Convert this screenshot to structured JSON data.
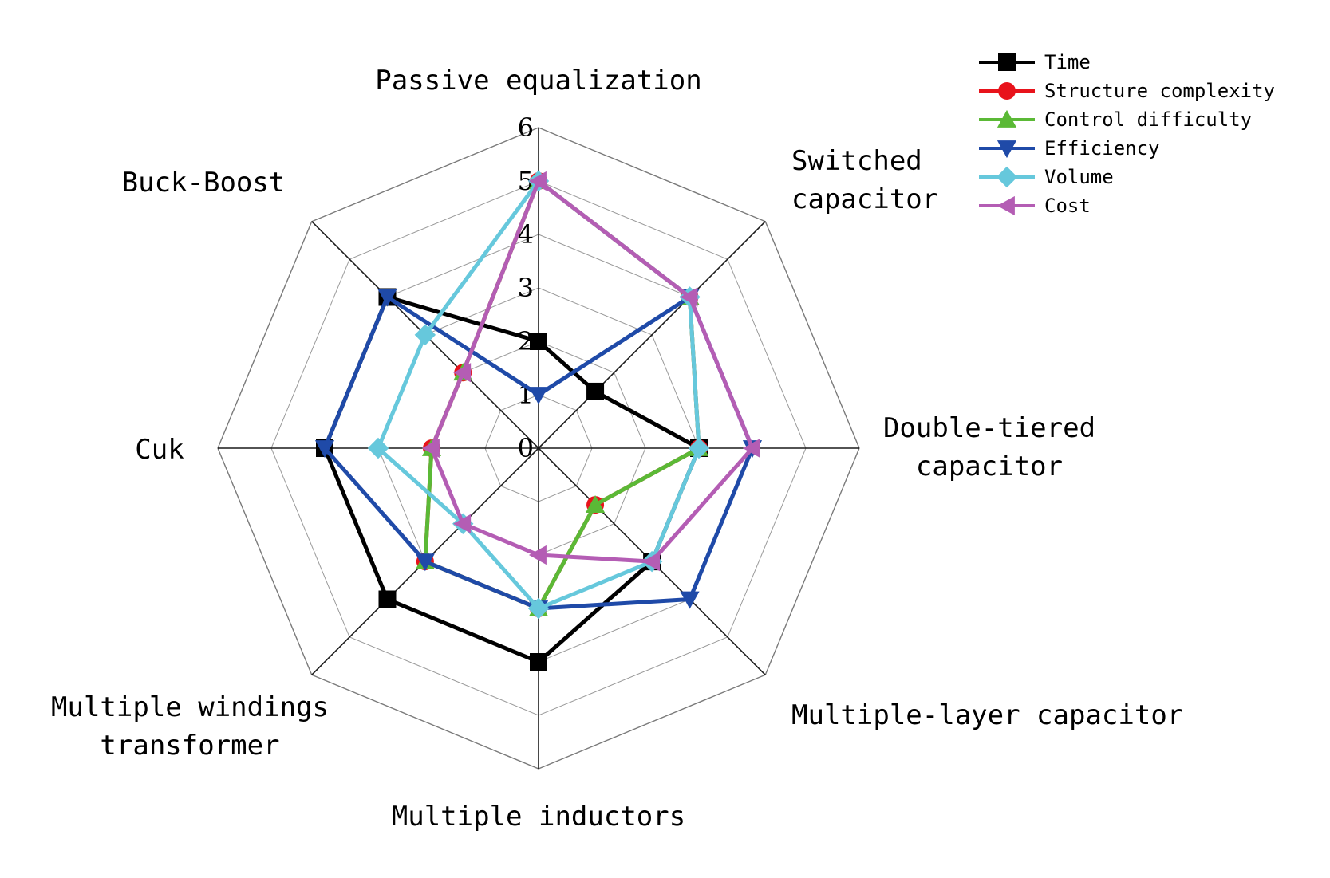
{
  "chart_data": {
    "type": "radar",
    "title": "",
    "axes": [
      [
        "Passive equalization"
      ],
      [
        "Switched",
        "capacitor"
      ],
      [
        "Double-tiered",
        "capacitor"
      ],
      [
        "Multiple-layer capacitor"
      ],
      [
        "Multiple inductors"
      ],
      [
        "Multiple windings",
        "transformer"
      ],
      [
        "Cuk"
      ],
      [
        "Buck-Boost"
      ]
    ],
    "ticks": [
      "0",
      "1",
      "2",
      "3",
      "4",
      "5",
      "6"
    ],
    "rmax": 6,
    "grid": true,
    "legend_position": "top-right",
    "series": [
      {
        "name": "Time",
        "color": "#000000",
        "marker": "square",
        "values": [
          2,
          1.5,
          3,
          3,
          4,
          4,
          4,
          4
        ]
      },
      {
        "name": "Structure complexity",
        "color": "#e8131b",
        "marker": "circle",
        "values": [
          5,
          4,
          3,
          1.5,
          3,
          3,
          2,
          2
        ]
      },
      {
        "name": "Control difficulty",
        "color": "#5bb936",
        "marker": "triangle-up",
        "values": [
          5,
          4,
          3,
          1.5,
          3,
          3,
          2,
          2
        ]
      },
      {
        "name": "Efficiency",
        "color": "#1f4aa8",
        "marker": "triangle-down",
        "values": [
          1,
          4,
          4,
          4,
          3,
          3,
          4,
          4
        ]
      },
      {
        "name": "Volume",
        "color": "#66c8dc",
        "marker": "diamond",
        "values": [
          5,
          4,
          3,
          3,
          3,
          2,
          3,
          3
        ]
      },
      {
        "name": "Cost",
        "color": "#b45db4",
        "marker": "triangle-left",
        "values": [
          5,
          4,
          4,
          3,
          2,
          2,
          2,
          2
        ]
      }
    ]
  }
}
